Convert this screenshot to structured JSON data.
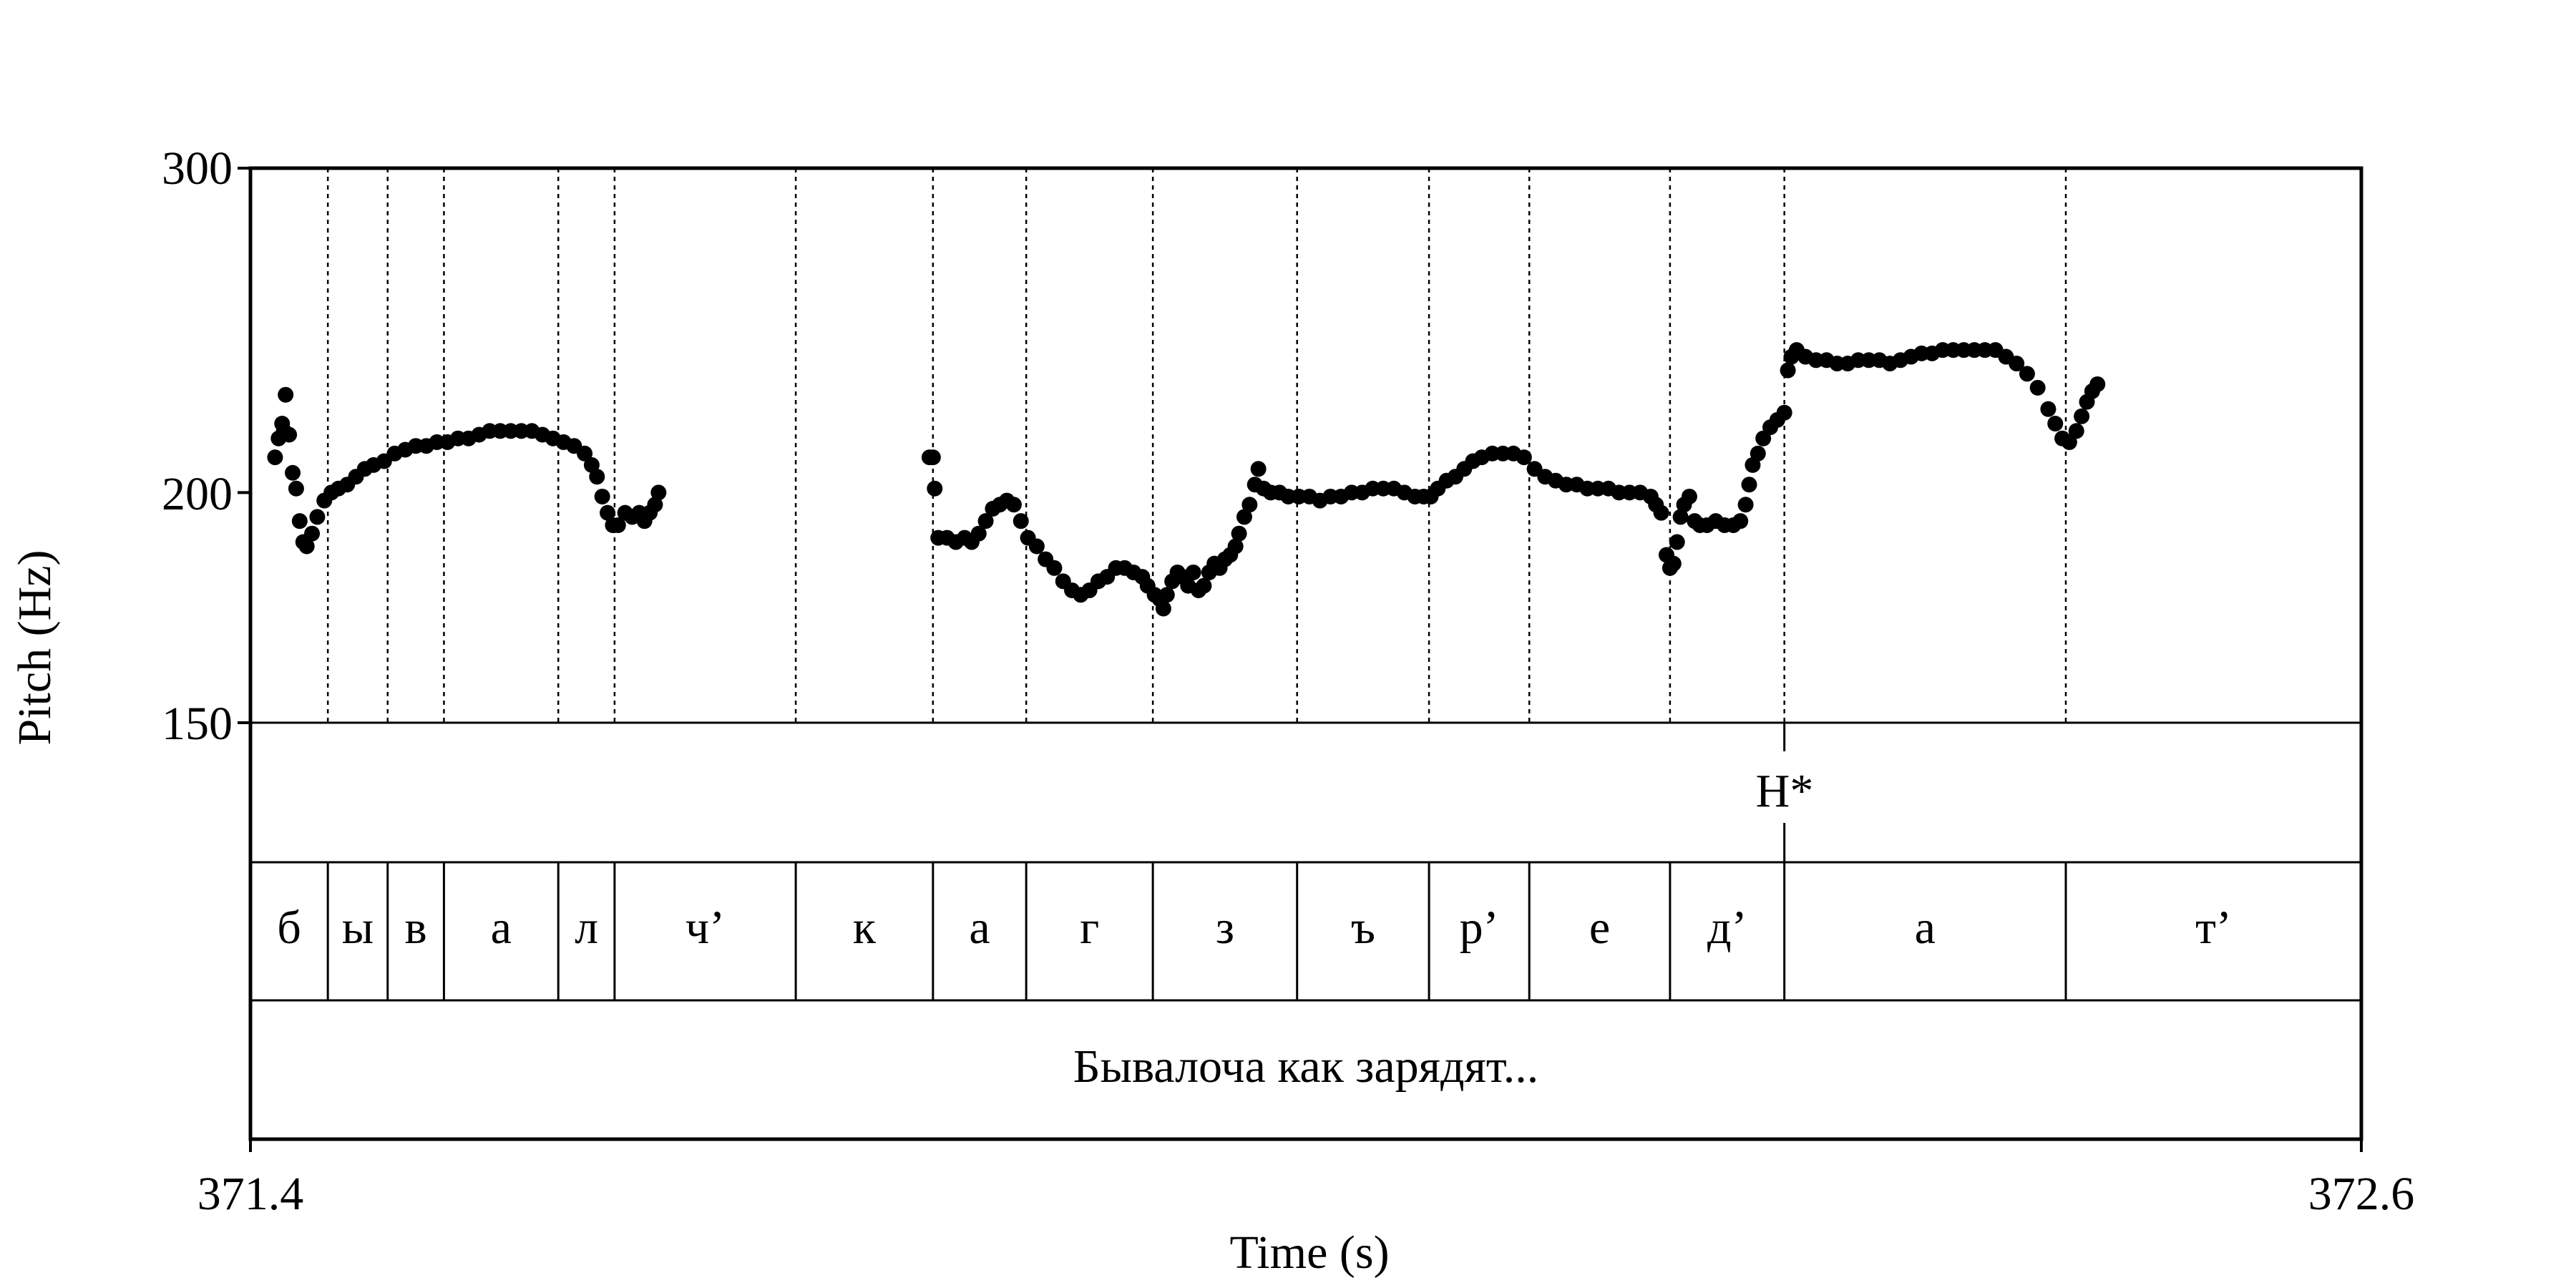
{
  "chart_data": {
    "type": "scatter",
    "title": "",
    "xlabel": "Time (s)",
    "ylabel": "Pitch (Hz)",
    "xlim": [
      371.4,
      372.6
    ],
    "ylim": [
      150,
      300
    ],
    "y_scale": "log",
    "x_tick_labels": [
      "371.4",
      "372.6"
    ],
    "y_ticks": [
      150,
      200,
      300
    ],
    "y_tick_labels": [
      "150",
      "200",
      "300"
    ],
    "grid": false,
    "tones_tier": [
      {
        "time": 372.272,
        "label": "H*"
      }
    ],
    "segments": [
      {
        "start": 371.4,
        "end": 371.444,
        "label": "б"
      },
      {
        "start": 371.444,
        "end": 371.478,
        "label": "ы"
      },
      {
        "start": 371.478,
        "end": 371.51,
        "label": "в"
      },
      {
        "start": 371.51,
        "end": 371.575,
        "label": "а"
      },
      {
        "start": 371.575,
        "end": 371.607,
        "label": "л"
      },
      {
        "start": 371.607,
        "end": 371.71,
        "label": "ч’"
      },
      {
        "start": 371.71,
        "end": 371.788,
        "label": "к"
      },
      {
        "start": 371.788,
        "end": 371.841,
        "label": "а"
      },
      {
        "start": 371.841,
        "end": 371.913,
        "label": "г"
      },
      {
        "start": 371.913,
        "end": 371.995,
        "label": "з"
      },
      {
        "start": 371.995,
        "end": 372.07,
        "label": "ъ"
      },
      {
        "start": 372.07,
        "end": 372.127,
        "label": "р’"
      },
      {
        "start": 372.127,
        "end": 372.207,
        "label": "е"
      },
      {
        "start": 372.207,
        "end": 372.272,
        "label": "д’"
      },
      {
        "start": 372.272,
        "end": 372.432,
        "label": "а"
      },
      {
        "start": 372.432,
        "end": 372.6,
        "label": "т’"
      }
    ],
    "phrase_tier": [
      {
        "start": 371.4,
        "end": 372.6,
        "label": "Бывалоча как зарядят..."
      }
    ],
    "series": [
      {
        "name": "",
        "points": [
          [
            371.414,
            209
          ],
          [
            371.416,
            214
          ],
          [
            371.418,
            218
          ],
          [
            371.419,
            216
          ],
          [
            371.42,
            226
          ],
          [
            371.422,
            215
          ],
          [
            371.424,
            205
          ],
          [
            371.426,
            201
          ],
          [
            371.428,
            193
          ],
          [
            371.43,
            188
          ],
          [
            371.432,
            187
          ],
          [
            371.435,
            190
          ],
          [
            371.438,
            194
          ],
          [
            371.442,
            198
          ],
          [
            371.446,
            200
          ],
          [
            371.45,
            201
          ],
          [
            371.455,
            202
          ],
          [
            371.46,
            204
          ],
          [
            371.465,
            206
          ],
          [
            371.47,
            207
          ],
          [
            371.476,
            208
          ],
          [
            371.482,
            210
          ],
          [
            371.488,
            211
          ],
          [
            371.494,
            212
          ],
          [
            371.5,
            212
          ],
          [
            371.506,
            213
          ],
          [
            371.512,
            213
          ],
          [
            371.518,
            214
          ],
          [
            371.524,
            214
          ],
          [
            371.53,
            215
          ],
          [
            371.536,
            216
          ],
          [
            371.542,
            216
          ],
          [
            371.548,
            216
          ],
          [
            371.554,
            216
          ],
          [
            371.56,
            216
          ],
          [
            371.566,
            215
          ],
          [
            371.572,
            214
          ],
          [
            371.578,
            213
          ],
          [
            371.584,
            212
          ],
          [
            371.59,
            210
          ],
          [
            371.594,
            207
          ],
          [
            371.597,
            204
          ],
          [
            371.6,
            199
          ],
          [
            371.603,
            195
          ],
          [
            371.606,
            192
          ],
          [
            371.609,
            192
          ],
          [
            371.613,
            195
          ],
          [
            371.617,
            194
          ],
          [
            371.621,
            195
          ],
          [
            371.624,
            193
          ],
          [
            371.627,
            195
          ],
          [
            371.63,
            197
          ],
          [
            371.632,
            200
          ],
          [
            371.786,
            209
          ],
          [
            371.788,
            209
          ],
          [
            371.789,
            201
          ],
          [
            371.791,
            189
          ],
          [
            371.796,
            189
          ],
          [
            371.801,
            188
          ],
          [
            371.806,
            189
          ],
          [
            371.81,
            188
          ],
          [
            371.814,
            190
          ],
          [
            371.818,
            193
          ],
          [
            371.822,
            196
          ],
          [
            371.826,
            197
          ],
          [
            371.83,
            198
          ],
          [
            371.834,
            197
          ],
          [
            371.838,
            193
          ],
          [
            371.842,
            189
          ],
          [
            371.847,
            187
          ],
          [
            371.852,
            184
          ],
          [
            371.857,
            182
          ],
          [
            371.862,
            179
          ],
          [
            371.867,
            177
          ],
          [
            371.872,
            176
          ],
          [
            371.877,
            177
          ],
          [
            371.882,
            179
          ],
          [
            371.887,
            180
          ],
          [
            371.892,
            182
          ],
          [
            371.897,
            182
          ],
          [
            371.902,
            181
          ],
          [
            371.907,
            180
          ],
          [
            371.91,
            178
          ],
          [
            371.914,
            176
          ],
          [
            371.917,
            175
          ],
          [
            371.919,
            173
          ],
          [
            371.921,
            176
          ],
          [
            371.924,
            179
          ],
          [
            371.927,
            181
          ],
          [
            371.93,
            180
          ],
          [
            371.933,
            178
          ],
          [
            371.936,
            181
          ],
          [
            371.939,
            177
          ],
          [
            371.942,
            178
          ],
          [
            371.945,
            181
          ],
          [
            371.948,
            183
          ],
          [
            371.951,
            182
          ],
          [
            371.954,
            184
          ],
          [
            371.957,
            185
          ],
          [
            371.96,
            187
          ],
          [
            371.962,
            190
          ],
          [
            371.965,
            194
          ],
          [
            371.968,
            197
          ],
          [
            371.971,
            202
          ],
          [
            371.973,
            206
          ],
          [
            371.976,
            201
          ],
          [
            371.98,
            200
          ],
          [
            371.985,
            200
          ],
          [
            371.99,
            199
          ],
          [
            371.996,
            199
          ],
          [
            372.002,
            199
          ],
          [
            372.008,
            198
          ],
          [
            372.014,
            199
          ],
          [
            372.02,
            199
          ],
          [
            372.026,
            200
          ],
          [
            372.032,
            200
          ],
          [
            372.038,
            201
          ],
          [
            372.044,
            201
          ],
          [
            372.05,
            201
          ],
          [
            372.056,
            200
          ],
          [
            372.062,
            199
          ],
          [
            372.067,
            199
          ],
          [
            372.071,
            199
          ],
          [
            372.075,
            201
          ],
          [
            372.08,
            203
          ],
          [
            372.085,
            204
          ],
          [
            372.09,
            206
          ],
          [
            372.095,
            208
          ],
          [
            372.1,
            209
          ],
          [
            372.106,
            210
          ],
          [
            372.112,
            210
          ],
          [
            372.118,
            210
          ],
          [
            372.124,
            209
          ],
          [
            372.13,
            206
          ],
          [
            372.136,
            204
          ],
          [
            372.142,
            203
          ],
          [
            372.148,
            202
          ],
          [
            372.154,
            202
          ],
          [
            372.16,
            201
          ],
          [
            372.166,
            201
          ],
          [
            372.172,
            201
          ],
          [
            372.178,
            200
          ],
          [
            372.184,
            200
          ],
          [
            372.19,
            200
          ],
          [
            372.196,
            199
          ],
          [
            372.199,
            197
          ],
          [
            372.202,
            195
          ],
          [
            372.205,
            185
          ],
          [
            372.207,
            182
          ],
          [
            372.209,
            183
          ],
          [
            372.211,
            188
          ],
          [
            372.213,
            194
          ],
          [
            372.215,
            197
          ],
          [
            372.218,
            199
          ],
          [
            372.221,
            193
          ],
          [
            372.224,
            192
          ],
          [
            372.228,
            192
          ],
          [
            372.233,
            193
          ],
          [
            372.238,
            192
          ],
          [
            372.243,
            192
          ],
          [
            372.247,
            193
          ],
          [
            372.25,
            197
          ],
          [
            372.252,
            202
          ],
          [
            372.254,
            207
          ],
          [
            372.257,
            210
          ],
          [
            372.26,
            214
          ],
          [
            372.264,
            217
          ],
          [
            372.268,
            219
          ],
          [
            372.272,
            221
          ],
          [
            372.274,
            233
          ],
          [
            372.276,
            237
          ],
          [
            372.279,
            239
          ],
          [
            372.284,
            237
          ],
          [
            372.29,
            236
          ],
          [
            372.296,
            236
          ],
          [
            372.302,
            235
          ],
          [
            372.308,
            235
          ],
          [
            372.314,
            236
          ],
          [
            372.32,
            236
          ],
          [
            372.326,
            236
          ],
          [
            372.332,
            235
          ],
          [
            372.338,
            236
          ],
          [
            372.344,
            237
          ],
          [
            372.35,
            238
          ],
          [
            372.356,
            238
          ],
          [
            372.362,
            239
          ],
          [
            372.368,
            239
          ],
          [
            372.374,
            239
          ],
          [
            372.38,
            239
          ],
          [
            372.386,
            239
          ],
          [
            372.392,
            239
          ],
          [
            372.398,
            237
          ],
          [
            372.404,
            235
          ],
          [
            372.41,
            232
          ],
          [
            372.416,
            228
          ],
          [
            372.422,
            222
          ],
          [
            372.426,
            218
          ],
          [
            372.43,
            214
          ],
          [
            372.434,
            213
          ],
          [
            372.438,
            216
          ],
          [
            372.441,
            220
          ],
          [
            372.444,
            224
          ],
          [
            372.447,
            227
          ],
          [
            372.45,
            229
          ]
        ]
      }
    ]
  }
}
